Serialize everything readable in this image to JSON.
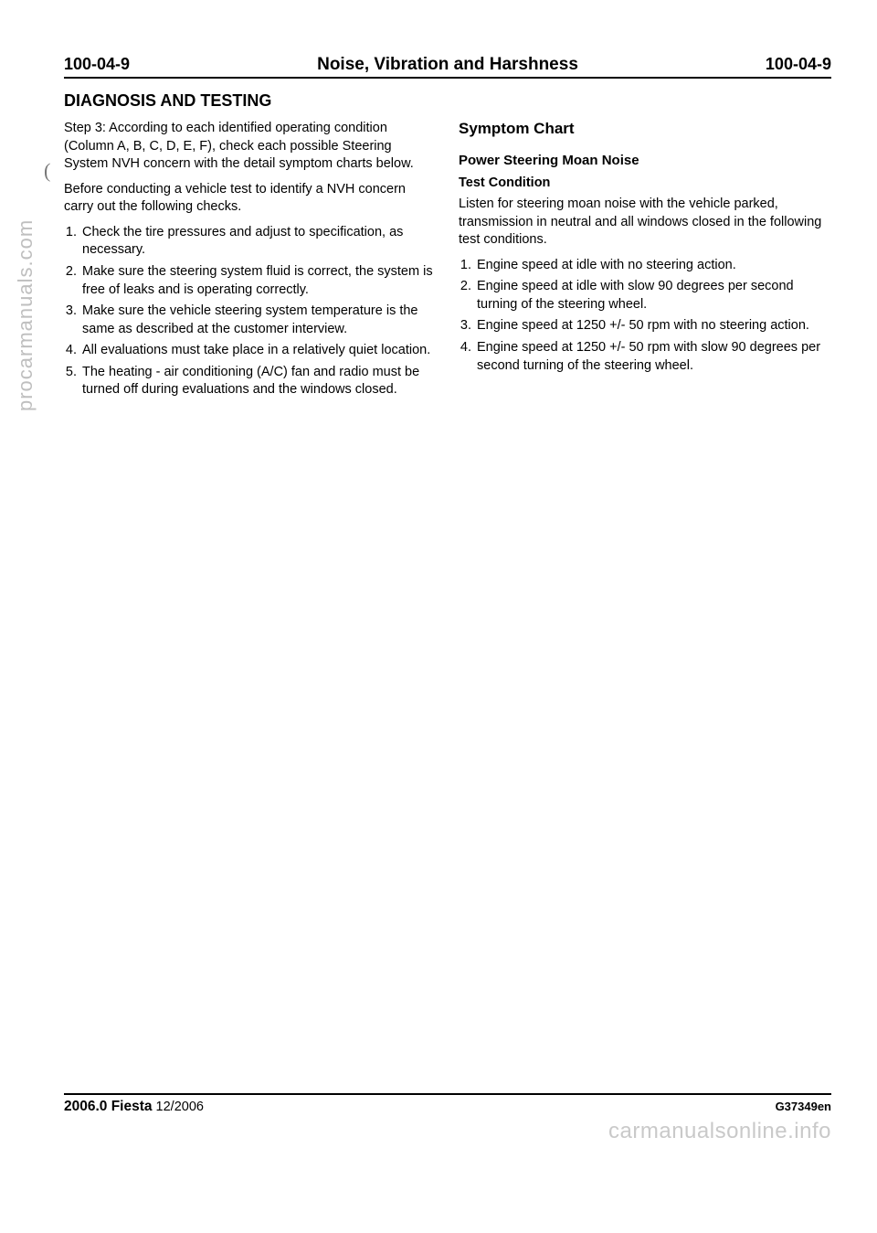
{
  "header": {
    "left": "100-04-9",
    "center": "Noise, Vibration and Harshness",
    "right": "100-04-9"
  },
  "section_title": "DIAGNOSIS AND TESTING",
  "left_column": {
    "step3": "Step 3: According to each identified operating condition (Column A, B, C, D, E, F), check each possible Steering System NVH concern with the detail symptom charts below.",
    "before": "Before conducting a vehicle test to identify a NVH concern carry out the following checks.",
    "ol": [
      "Check the tire pressures and adjust to specification, as necessary.",
      "Make sure the steering system fluid is correct, the system is free of leaks and is operating correctly.",
      "Make sure the vehicle steering system temperature is the same as described at the customer interview.",
      "All evaluations must take place in a relatively quiet location.",
      "The heating - air conditioning (A/C) fan and radio must be turned off during evaluations and the windows closed."
    ]
  },
  "right_column": {
    "h2": "Symptom Chart",
    "h3": "Power Steering Moan Noise",
    "h4": "Test Condition",
    "intro": "Listen for steering moan noise with the vehicle parked, transmission in neutral and all windows closed in the following test conditions.",
    "ol": [
      "Engine speed at idle with no steering action.",
      "Engine speed at idle with slow 90 degrees per second turning of the steering wheel.",
      "Engine speed at 1250 +/- 50 rpm with no steering action.",
      "Engine speed at 1250 +/- 50 rpm with slow 90 degrees per second turning of the steering wheel."
    ]
  },
  "footer": {
    "model_bold": "2006.0 Fiesta",
    "model_rest": " 12/2006",
    "code": "G37349en"
  },
  "watermarks": {
    "side": "procarmanuals.com",
    "bottom": "carmanualsonline.info"
  }
}
